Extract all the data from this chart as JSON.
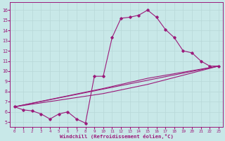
{
  "xlabel": "Windchill (Refroidissement éolien,°C)",
  "bg_color": "#c8e8e8",
  "line_color": "#9b1a7a",
  "grid_color": "#b8d8d8",
  "x_ticks": [
    0,
    1,
    2,
    3,
    4,
    5,
    6,
    7,
    8,
    9,
    10,
    11,
    12,
    13,
    14,
    15,
    16,
    17,
    18,
    19,
    20,
    21,
    22,
    23
  ],
  "y_ticks": [
    5,
    6,
    7,
    8,
    9,
    10,
    11,
    12,
    13,
    14,
    15,
    16
  ],
  "ylim": [
    4.5,
    16.8
  ],
  "xlim": [
    -0.5,
    23.5
  ],
  "line1_x": [
    0,
    1,
    2,
    3,
    4,
    5,
    6,
    7,
    8,
    9,
    10,
    11,
    12,
    13,
    14,
    15,
    16,
    17,
    18,
    19,
    20,
    21,
    22,
    23
  ],
  "line1_y": [
    6.5,
    6.2,
    6.1,
    5.8,
    5.3,
    5.8,
    6.0,
    5.3,
    4.9,
    9.5,
    9.5,
    13.3,
    15.2,
    15.3,
    15.5,
    16.0,
    15.3,
    14.1,
    13.3,
    12.0,
    11.8,
    11.0,
    10.5,
    10.5
  ],
  "trend1_x": [
    0,
    23
  ],
  "trend1_y": [
    6.5,
    10.5
  ],
  "trend2_x": [
    0,
    10,
    15,
    23
  ],
  "trend2_y": [
    6.5,
    8.3,
    9.3,
    10.5
  ],
  "trend3_x": [
    0,
    10,
    15,
    23
  ],
  "trend3_y": [
    6.5,
    7.8,
    8.7,
    10.5
  ]
}
